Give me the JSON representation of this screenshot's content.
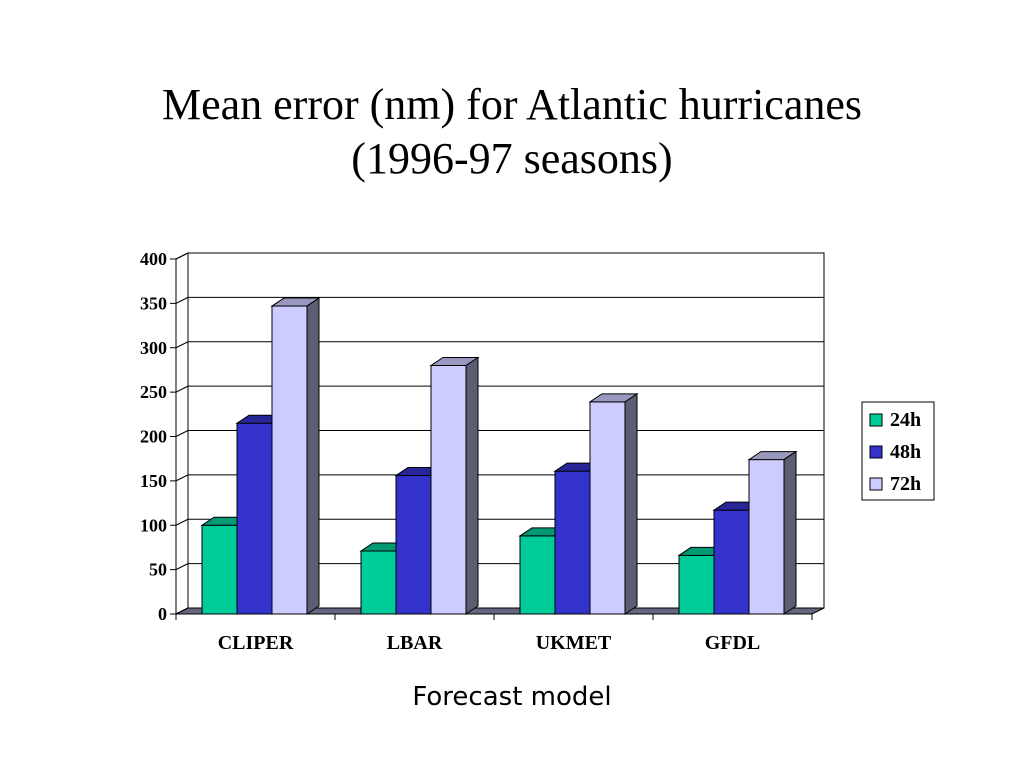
{
  "slide": {
    "title_line1": "Mean error (nm) for Atlantic hurricanes",
    "title_line2": "(1996-97 seasons)"
  },
  "chart_data": {
    "type": "bar",
    "style": "3d-clustered-column",
    "categories": [
      "CLIPER",
      "LBAR",
      "UKMET",
      "GFDL"
    ],
    "series": [
      {
        "name": "24h",
        "color": "#00CC99",
        "values": [
          100,
          71,
          88,
          66
        ]
      },
      {
        "name": "48h",
        "color": "#3333CC",
        "values": [
          215,
          156,
          161,
          117
        ]
      },
      {
        "name": "72h",
        "color": "#CCCCFF",
        "values": [
          347,
          280,
          239,
          174
        ]
      }
    ],
    "yticks": [
      0,
      50,
      100,
      150,
      200,
      250,
      300,
      350,
      400
    ],
    "ylim": [
      0,
      400
    ],
    "xlabel": "Forecast model",
    "ylabel": "",
    "grid": true,
    "legend_position": "right"
  }
}
